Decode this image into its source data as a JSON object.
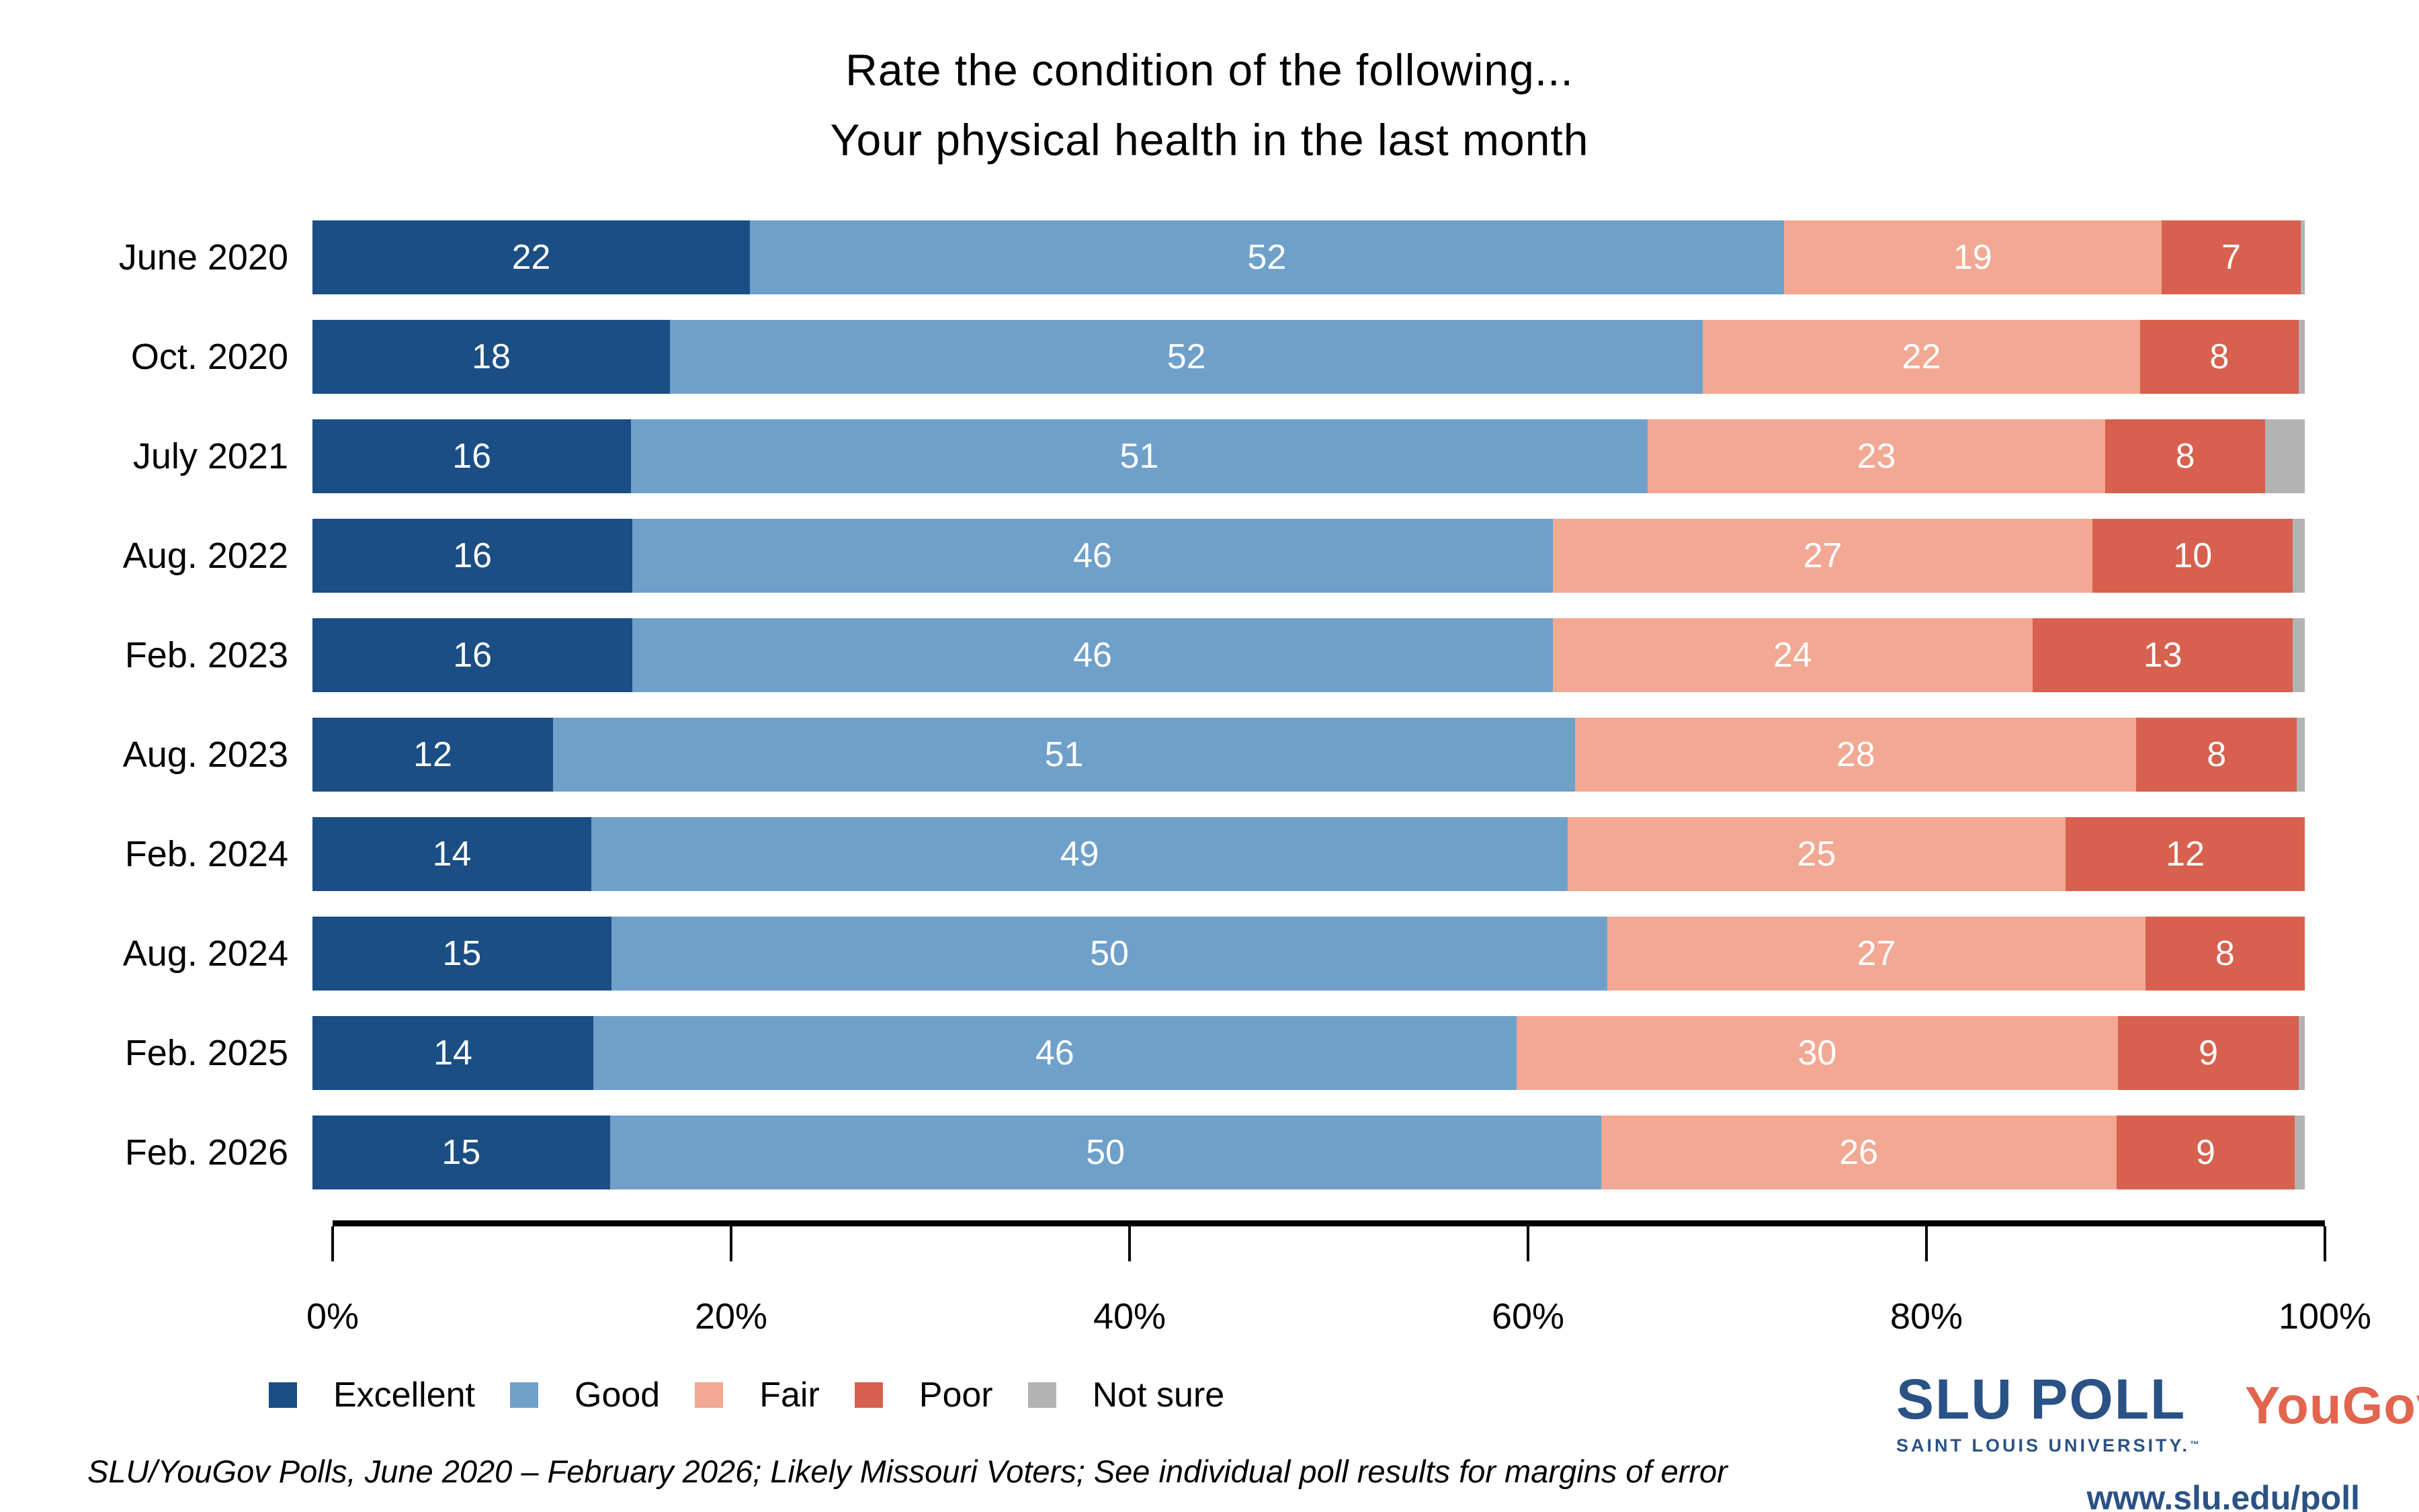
{
  "title": {
    "line1": "Rate the condition of the following...",
    "line2": "Your physical health in the last month"
  },
  "chart_data": {
    "type": "bar",
    "stacked": true,
    "orientation": "horizontal",
    "title": "Rate the condition of the following... Your physical health in the last month",
    "categories": [
      "June 2020",
      "Oct. 2020",
      "July 2021",
      "Aug. 2022",
      "Feb. 2023",
      "Aug. 2023",
      "Feb. 2024",
      "Aug. 2024",
      "Feb. 2025",
      "Feb. 2026"
    ],
    "series": [
      {
        "name": "Excellent",
        "color": "#1a4e84",
        "labeled": true,
        "values": [
          22,
          18,
          16,
          16,
          16,
          12,
          14,
          15,
          14,
          15
        ]
      },
      {
        "name": "Good",
        "color": "#6fa0ca",
        "labeled": true,
        "values": [
          52,
          52,
          51,
          46,
          46,
          51,
          49,
          50,
          46,
          50
        ]
      },
      {
        "name": "Fair",
        "color": "#f2a893",
        "labeled": true,
        "values": [
          19,
          22,
          23,
          27,
          24,
          28,
          25,
          27,
          30,
          26
        ]
      },
      {
        "name": "Poor",
        "color": "#d7604e",
        "labeled": true,
        "values": [
          7,
          8,
          8,
          10,
          13,
          8,
          12,
          8,
          9,
          9
        ]
      },
      {
        "name": "Not sure",
        "color": "#b3b3b3",
        "labeled": false,
        "values": [
          0.2,
          0.3,
          2,
          0.6,
          0.6,
          0.4,
          0,
          0,
          0.3,
          0.5
        ]
      }
    ],
    "xlim": [
      0,
      100
    ],
    "x_ticks": [
      {
        "pos": 0,
        "label": "0%"
      },
      {
        "pos": 20,
        "label": "20%"
      },
      {
        "pos": 40,
        "label": "40%"
      },
      {
        "pos": 60,
        "label": "60%"
      },
      {
        "pos": 80,
        "label": "80%"
      },
      {
        "pos": 100,
        "label": "100%"
      }
    ],
    "grid": false,
    "legend_position": "bottom-left",
    "value_labels": "inside-white"
  },
  "footer": {
    "note": "SLU/YouGov Polls, June 2020 – February 2026; Likely Missouri Voters; See individual poll results for margins of error"
  },
  "branding": {
    "slu_poll": "SLU POLL",
    "slu_sub": "SAINT LOUIS UNIVERSITY.",
    "tm": "™",
    "yougov": "YouGov",
    "reg": "®",
    "url": "www.slu.edu/poll",
    "slu_blue": "#2a5285",
    "yougov_red": "#e2654e"
  }
}
